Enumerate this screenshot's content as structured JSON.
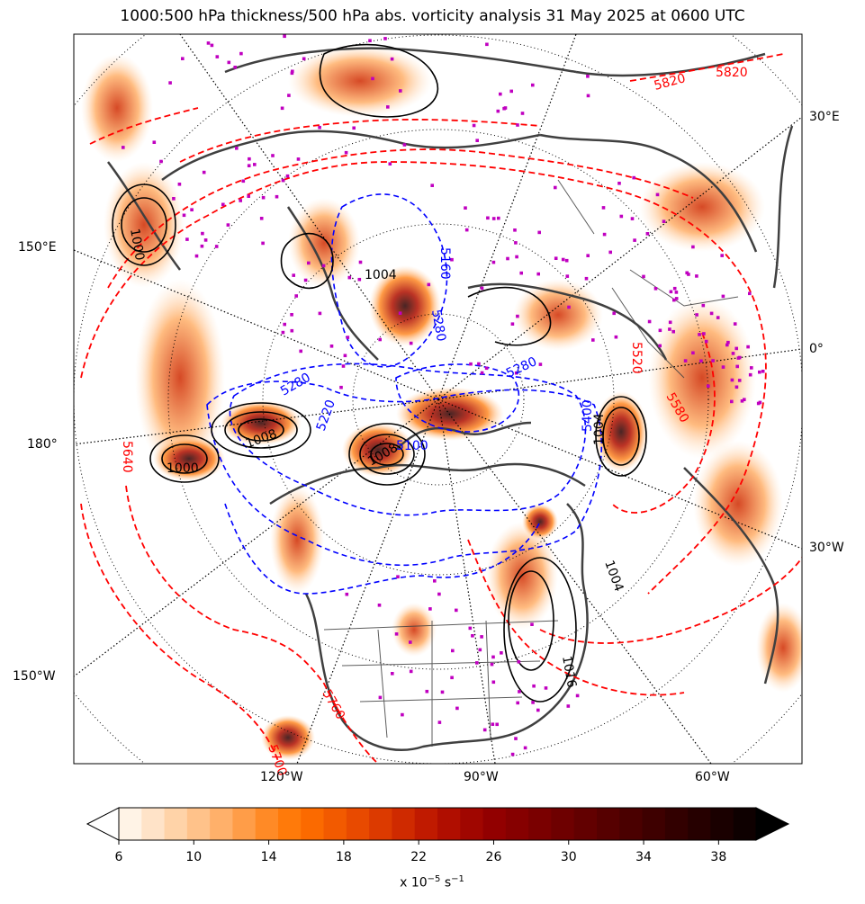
{
  "title": "1000:500 hPa thickness/500 hPa abs. vorticity analysis 31 May 2025 at 0600 UTC",
  "longitude_labels": {
    "e30": "30°E",
    "e150": "150°E",
    "zero": "0°",
    "dateline": "180°",
    "w30": "30°W",
    "w150": "150°W",
    "w120": "120°W",
    "w90": "90°W",
    "w60": "60°W"
  },
  "contour_labels": {
    "thickness_warm": [
      "5820",
      "5820",
      "5700",
      "5760",
      "5640",
      "5520",
      "5580"
    ],
    "thickness_cold": [
      "5160",
      "5280",
      "5280",
      "5220",
      "5400",
      "5100",
      "5280"
    ],
    "pressure": [
      "1000",
      "1004",
      "1008",
      "1008",
      "1004",
      "1000",
      "1016",
      "1004"
    ]
  },
  "colorbar": {
    "ticks": [
      "6",
      "10",
      "14",
      "18",
      "22",
      "26",
      "30",
      "34",
      "38"
    ],
    "units_prefix": "x 10",
    "units_exp": "−5",
    "units_suffix": " s",
    "units_exp2": "−1",
    "colors": [
      "#fff3e6",
      "#ffe3c8",
      "#ffd3a8",
      "#ffc28a",
      "#ffb06a",
      "#ff9d48",
      "#ff8a26",
      "#ff7a0a",
      "#fb6a00",
      "#f25a00",
      "#e84a00",
      "#dc3a00",
      "#cf2a00",
      "#c01a00",
      "#b00e00",
      "#a00600",
      "#920000",
      "#860000",
      "#7a0000",
      "#6e0000",
      "#620000",
      "#560000",
      "#4a0000",
      "#3e0000",
      "#320000",
      "#260000",
      "#1a0000",
      "#0e0000"
    ],
    "extend_low": "#ffffff",
    "extend_high": "#000000"
  },
  "style": {
    "cold_contour": "#0000ff",
    "warm_contour": "#ff0000",
    "pressure_contour": "#000000",
    "coast": "#404040",
    "station": "#c000c0"
  }
}
